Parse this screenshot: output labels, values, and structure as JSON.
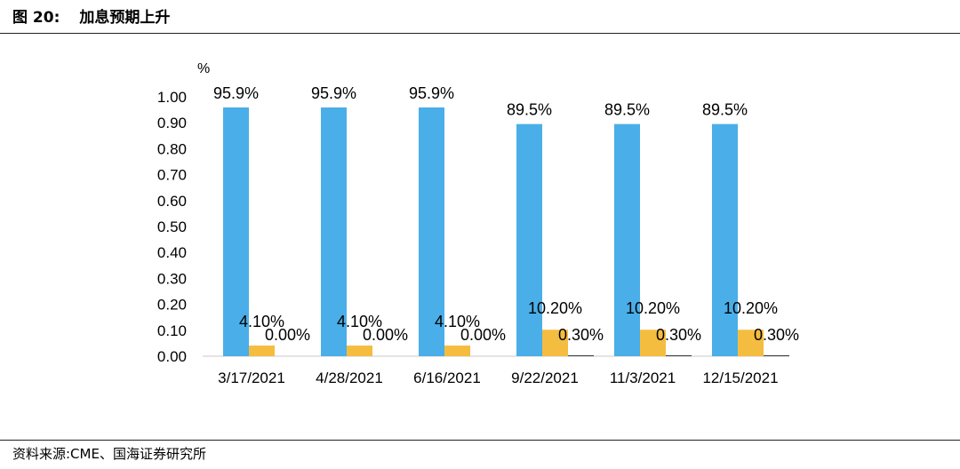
{
  "header": {
    "figure_no": "图 20:",
    "title": "加息预期上升"
  },
  "footer": {
    "source": "资料来源:CME、国海证券研究所"
  },
  "chart_data": {
    "type": "bar",
    "y_unit": "%",
    "ylim": [
      0,
      1.0
    ],
    "yticks": [
      "0.00",
      "0.10",
      "0.20",
      "0.30",
      "0.40",
      "0.50",
      "0.60",
      "0.70",
      "0.80",
      "0.90",
      "1.00"
    ],
    "categories": [
      "3/17/2021",
      "4/28/2021",
      "6/16/2021",
      "9/22/2021",
      "11/3/2021",
      "12/15/2021"
    ],
    "series": [
      {
        "color": "#4aaee8",
        "values": [
          0.959,
          0.959,
          0.959,
          0.895,
          0.895,
          0.895
        ],
        "labels": [
          "95.9%",
          "95.9%",
          "95.9%",
          "89.5%",
          "89.5%",
          "89.5%"
        ]
      },
      {
        "color": "#f5bd3f",
        "values": [
          0.041,
          0.041,
          0.041,
          0.102,
          0.102,
          0.102
        ],
        "labels": [
          "4.10%",
          "4.10%",
          "4.10%",
          "10.20%",
          "10.20%",
          "10.20%"
        ]
      },
      {
        "color": "#3a3a3a",
        "values": [
          0,
          0,
          0,
          0.003,
          0.003,
          0.003
        ],
        "labels": [
          "0.00%",
          "0.00%",
          "0.00%",
          "0.30%",
          "0.30%",
          "0.30%"
        ]
      }
    ],
    "grid": false,
    "legend": "none"
  }
}
